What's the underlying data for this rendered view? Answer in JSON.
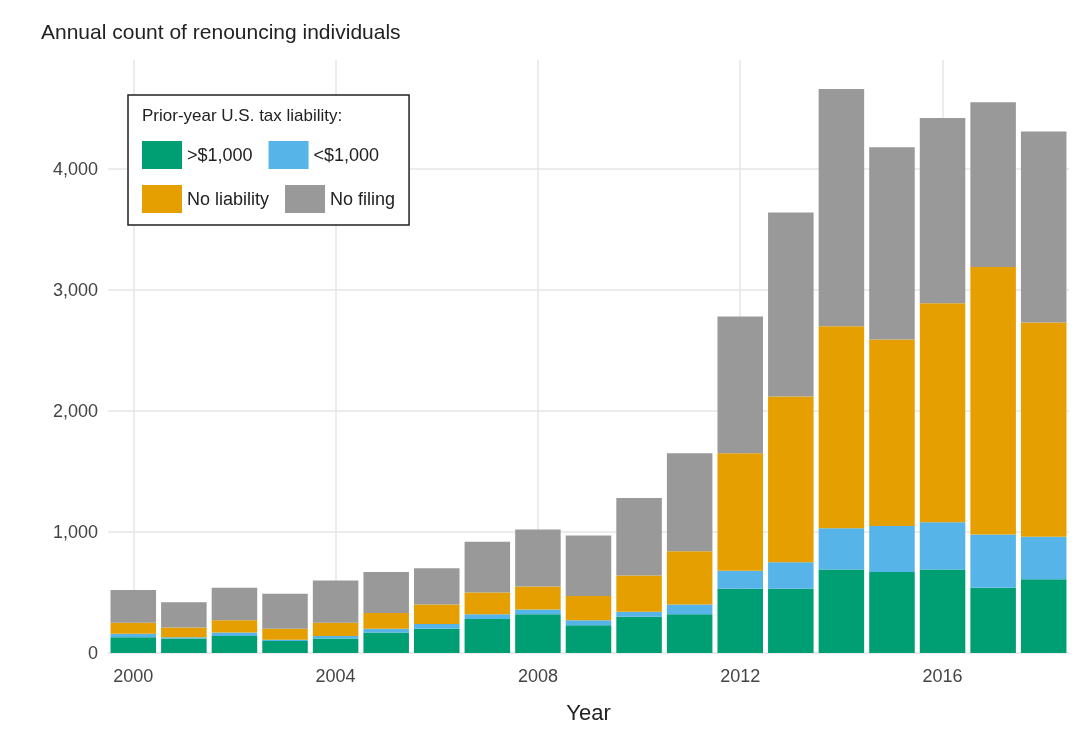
{
  "chart_data": {
    "type": "bar",
    "title": "Annual count of renouncing individuals",
    "xlabel": "Year",
    "legend_title": "Prior-year U.S. tax liability:",
    "x": [
      2000,
      2001,
      2002,
      2003,
      2004,
      2005,
      2006,
      2007,
      2008,
      2009,
      2010,
      2011,
      2012,
      2013,
      2014,
      2015,
      2016,
      2017,
      2018
    ],
    "stacked": true,
    "series": [
      {
        "name": ">$1,000",
        "color": "#009e73",
        "values": [
          130,
          120,
          140,
          100,
          120,
          170,
          200,
          280,
          320,
          230,
          300,
          320,
          530,
          530,
          690,
          670,
          690,
          540,
          610
        ]
      },
      {
        "name": "<$1,000",
        "color": "#56b4e9",
        "values": [
          30,
          10,
          30,
          10,
          20,
          30,
          40,
          40,
          40,
          40,
          40,
          80,
          150,
          220,
          340,
          380,
          390,
          440,
          350
        ]
      },
      {
        "name": "No liability",
        "color": "#e69f00",
        "values": [
          90,
          80,
          100,
          90,
          110,
          130,
          160,
          180,
          190,
          200,
          300,
          440,
          970,
          1370,
          1670,
          1540,
          1810,
          2210,
          1770
        ]
      },
      {
        "name": "No filing",
        "color": "#999999",
        "values": [
          270,
          210,
          270,
          290,
          350,
          340,
          300,
          420,
          470,
          500,
          640,
          810,
          1130,
          1520,
          1960,
          1590,
          1530,
          1360,
          1580
        ]
      }
    ],
    "xlim": [
      1999.5,
      2018.5
    ],
    "xticks": [
      2000,
      2004,
      2008,
      2012,
      2016
    ],
    "ylim": [
      0,
      4900
    ],
    "yticks": [
      0,
      {
        "value": 1000,
        "label": "1,000"
      },
      {
        "value": 2000,
        "label": "2,000"
      },
      {
        "value": 3000,
        "label": "3,000"
      },
      {
        "value": 4000,
        "label": "4,000"
      }
    ],
    "grid": true,
    "legend": "top left"
  }
}
